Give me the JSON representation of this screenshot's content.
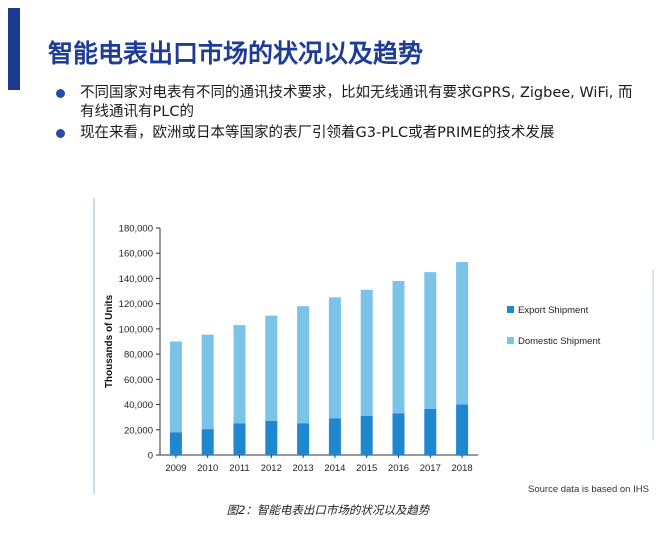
{
  "slide": {
    "title": "智能电表出口市场的状况以及趋势",
    "bullets": [
      "不同国家对电表有不同的通讯技术要求，比如无线通讯有要求GPRS, Zigbee, WiFi, 而有线通讯有PLC的",
      "现在来看，欧洲或日本等国家的表厂引领着G3-PLC或者PRIME的技术发展"
    ],
    "source_note": "Source data is based on IHS",
    "caption": "图2：智能电表出口市场的状况以及趋势"
  },
  "colors": {
    "title": "#1e3c96",
    "accent_bar": "#1b3a8f",
    "export": "#1f86d0",
    "domestic": "#7cc3ea"
  },
  "chart_data": {
    "type": "bar",
    "stacked": true,
    "categories": [
      "2009",
      "2010",
      "2011",
      "2012",
      "2013",
      "2014",
      "2015",
      "2016",
      "2017",
      "2018"
    ],
    "series": [
      {
        "name": "Export Shipment",
        "values": [
          18000,
          20500,
          25000,
          27000,
          25000,
          29000,
          31000,
          33000,
          36500,
          40000
        ]
      },
      {
        "name": "Domestic Shipment",
        "values": [
          72000,
          75000,
          78000,
          83500,
          93000,
          96000,
          100000,
          105000,
          108500,
          113000
        ]
      }
    ],
    "ylabel": "Thousands of Units",
    "ylim": [
      0,
      180000
    ],
    "yticks": [
      "0",
      "20,000",
      "40,000",
      "60,000",
      "80,000",
      "100,000",
      "120,000",
      "140,000",
      "160,000",
      "180,000"
    ],
    "ytick_values": [
      0,
      20000,
      40000,
      60000,
      80000,
      100000,
      120000,
      140000,
      160000,
      180000
    ],
    "legend_position": "right",
    "grid": false
  }
}
